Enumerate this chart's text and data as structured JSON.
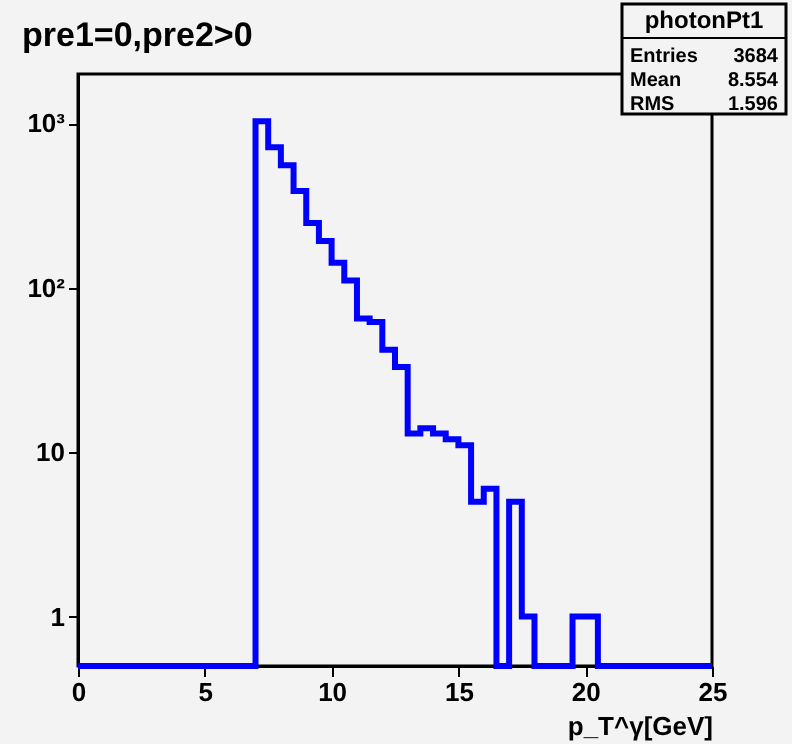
{
  "chart_data": {
    "type": "histogram",
    "title": "pre1=0,pre2>0",
    "xlabel": "p_T^γ[GeV]",
    "bins": [
      0,
      0.5,
      1,
      1.5,
      2,
      2.5,
      3,
      3.5,
      4,
      4.5,
      5,
      5.5,
      6,
      6.5,
      7,
      7.5,
      8,
      8.5,
      9,
      9.5,
      10,
      10.5,
      11,
      11.5,
      12,
      12.5,
      13,
      13.5,
      14,
      14.5,
      15,
      15.5,
      16,
      16.5,
      17,
      17.5,
      18,
      18.5,
      19,
      19.5,
      20,
      20.5,
      21,
      21.5,
      22,
      22.5,
      23,
      23.5,
      24,
      24.5,
      25
    ],
    "values": [
      null,
      null,
      null,
      null,
      null,
      null,
      null,
      null,
      null,
      null,
      null,
      null,
      null,
      null,
      1030,
      716,
      557,
      388,
      248,
      193,
      142,
      111,
      65,
      62,
      42,
      33,
      13,
      14,
      13,
      12,
      11,
      5,
      6,
      null,
      5,
      1,
      null,
      null,
      null,
      1,
      1,
      null,
      null,
      null,
      null,
      null,
      null,
      null,
      null,
      null
    ],
    "color": "#0000ff",
    "xlim": [
      0,
      25
    ],
    "xticks": [
      0,
      5,
      10,
      15,
      20,
      25
    ],
    "ylim": [
      0.5,
      2000
    ],
    "yticks": [
      1,
      10,
      {
        "value": 100,
        "label": "10²"
      },
      {
        "value": 1000,
        "label": "10³"
      }
    ],
    "log": "y",
    "grid": false,
    "annotations": [
      "photonPt1",
      "Entries",
      "3684",
      "Mean",
      "8.554",
      "RMS",
      "1.596"
    ]
  }
}
